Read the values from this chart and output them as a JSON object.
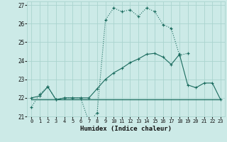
{
  "xlabel": "Humidex (Indice chaleur)",
  "bg_color": "#cceae7",
  "grid_color": "#aad4cf",
  "line_color": "#1a6b5e",
  "xlim": [
    -0.5,
    23.5
  ],
  "ylim": [
    21.0,
    27.2
  ],
  "yticks": [
    21,
    22,
    23,
    24,
    25,
    26,
    27
  ],
  "xticks": [
    0,
    1,
    2,
    3,
    4,
    5,
    6,
    7,
    8,
    9,
    10,
    11,
    12,
    13,
    14,
    15,
    16,
    17,
    18,
    19,
    20,
    21,
    22,
    23
  ],
  "curve1_x": [
    0,
    1,
    2,
    3,
    4,
    5,
    6,
    7,
    8,
    9,
    10,
    11,
    12,
    13,
    14,
    15,
    16,
    17,
    18,
    19,
    20,
    21,
    22,
    23
  ],
  "curve1_y": [
    21.5,
    22.2,
    22.6,
    21.9,
    22.0,
    22.0,
    22.0,
    20.7,
    21.2,
    26.2,
    26.85,
    26.65,
    26.75,
    26.4,
    26.85,
    26.65,
    25.95,
    25.75,
    24.3,
    24.4,
    null,
    null,
    null,
    null
  ],
  "curve2_x": [
    0,
    1,
    2,
    3,
    4,
    5,
    6,
    7,
    8,
    9,
    10,
    11,
    12,
    13,
    14,
    15,
    16,
    17,
    18,
    19,
    20,
    21,
    22,
    23
  ],
  "curve2_y": [
    21.9,
    21.9,
    21.9,
    21.9,
    21.9,
    21.9,
    21.9,
    21.9,
    21.9,
    21.9,
    21.9,
    21.9,
    21.9,
    21.9,
    21.9,
    21.9,
    21.9,
    21.9,
    21.9,
    21.9,
    21.9,
    21.9,
    21.9,
    21.9
  ],
  "curve3_x": [
    0,
    1,
    2,
    3,
    4,
    5,
    6,
    7,
    8,
    9,
    10,
    11,
    12,
    13,
    14,
    15,
    16,
    17,
    18,
    19,
    20,
    21,
    22,
    23
  ],
  "curve3_y": [
    22.0,
    22.1,
    22.6,
    21.9,
    22.0,
    22.0,
    22.0,
    22.0,
    22.5,
    23.0,
    23.35,
    23.6,
    23.9,
    24.1,
    24.35,
    24.4,
    24.2,
    23.8,
    24.35,
    22.7,
    22.55,
    22.8,
    22.8,
    21.9
  ]
}
